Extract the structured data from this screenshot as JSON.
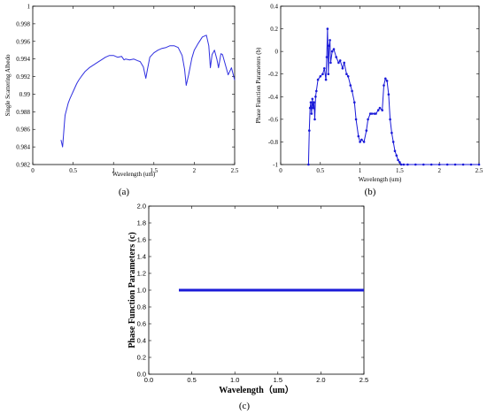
{
  "chart_data": [
    {
      "panel": "(a)",
      "type": "line",
      "xlabel": "Wavelength (um)",
      "ylabel": "Single Scattering Albedo",
      "xlim": [
        0,
        2.5
      ],
      "ylim": [
        0.982,
        1.0
      ],
      "xticks": [
        "0",
        "0.5",
        "1",
        "1.5",
        "2",
        "2.5"
      ],
      "yticks": [
        "0.982",
        "0.984",
        "0.986",
        "0.988",
        "0.99",
        "0.992",
        "0.994",
        "0.996",
        "0.998",
        "1"
      ],
      "grid": false,
      "color": "#2f2fe0",
      "series": [
        {
          "x": [
            0.35,
            0.37,
            0.38,
            0.39,
            0.4,
            0.42,
            0.44,
            0.46,
            0.48,
            0.5,
            0.52,
            0.54,
            0.55,
            0.57,
            0.6,
            0.65,
            0.7,
            0.75,
            0.8,
            0.85,
            0.9,
            0.95,
            1.0,
            1.05,
            1.1,
            1.13,
            1.15,
            1.2,
            1.25,
            1.3,
            1.33,
            1.37,
            1.4,
            1.42,
            1.45,
            1.5,
            1.55,
            1.6,
            1.65,
            1.7,
            1.75,
            1.8,
            1.85,
            1.88,
            1.9,
            1.93,
            1.97,
            2.0,
            2.05,
            2.1,
            2.15,
            2.18,
            2.2,
            2.22,
            2.25,
            2.28,
            2.3,
            2.33,
            2.35,
            2.38,
            2.42,
            2.46,
            2.5
          ],
          "y": [
            0.9848,
            0.984,
            0.9853,
            0.9865,
            0.9876,
            0.9883,
            0.989,
            0.9895,
            0.9899,
            0.9903,
            0.9907,
            0.9911,
            0.9913,
            0.9916,
            0.992,
            0.9926,
            0.993,
            0.9933,
            0.9936,
            0.9939,
            0.9942,
            0.9944,
            0.9944,
            0.9942,
            0.9943,
            0.9939,
            0.994,
            0.9939,
            0.994,
            0.9938,
            0.9937,
            0.9931,
            0.9918,
            0.9928,
            0.9942,
            0.9947,
            0.995,
            0.9952,
            0.9953,
            0.9955,
            0.9955,
            0.9953,
            0.9944,
            0.9928,
            0.991,
            0.9922,
            0.9941,
            0.995,
            0.9958,
            0.9965,
            0.9967,
            0.9955,
            0.993,
            0.9945,
            0.995,
            0.994,
            0.993,
            0.9946,
            0.9945,
            0.9935,
            0.9922,
            0.993,
            0.9916
          ]
        }
      ]
    },
    {
      "panel": "(b)",
      "type": "scatter",
      "xlabel": "Wavelength (um)",
      "ylabel": "Phase Function Parameters  (b)",
      "xlim": [
        0,
        2.5
      ],
      "ylim": [
        -1,
        0.4
      ],
      "xticks": [
        "0",
        "0.5",
        "1",
        "1.5",
        "2",
        "2.5"
      ],
      "yticks": [
        "-1",
        "-0.8",
        "-0.6",
        "-0.4",
        "-0.2",
        "0",
        "0.2",
        "0.4"
      ],
      "grid": false,
      "color": "#1a1ad8",
      "series": [
        {
          "x": [
            0.35,
            0.36,
            0.37,
            0.38,
            0.39,
            0.4,
            0.41,
            0.42,
            0.43,
            0.44,
            0.45,
            0.47,
            0.5,
            0.53,
            0.55,
            0.57,
            0.58,
            0.59,
            0.6,
            0.61,
            0.62,
            0.63,
            0.65,
            0.67,
            0.7,
            0.73,
            0.75,
            0.78,
            0.8,
            0.83,
            0.85,
            0.88,
            0.9,
            0.93,
            0.95,
            0.98,
            1.0,
            1.02,
            1.05,
            1.08,
            1.1,
            1.13,
            1.15,
            1.18,
            1.2,
            1.23,
            1.25,
            1.28,
            1.3,
            1.32,
            1.34,
            1.36,
            1.38,
            1.4,
            1.42,
            1.44,
            1.46,
            1.48,
            1.5,
            1.52,
            1.55,
            1.6,
            1.7,
            1.8,
            1.9,
            2.0,
            2.1,
            2.2,
            2.3,
            2.4,
            2.5
          ],
          "y": [
            -1.0,
            -0.7,
            -0.5,
            -0.45,
            -0.55,
            -0.42,
            -0.5,
            -0.45,
            -0.6,
            -0.4,
            -0.35,
            -0.25,
            -0.22,
            -0.2,
            -0.15,
            -0.25,
            -0.05,
            0.2,
            -0.2,
            0.05,
            0.1,
            -0.1,
            0.0,
            0.02,
            -0.05,
            -0.1,
            -0.08,
            -0.15,
            -0.1,
            -0.2,
            -0.22,
            -0.3,
            -0.35,
            -0.45,
            -0.6,
            -0.75,
            -0.8,
            -0.78,
            -0.8,
            -0.7,
            -0.6,
            -0.55,
            -0.55,
            -0.55,
            -0.55,
            -0.52,
            -0.5,
            -0.52,
            -0.3,
            -0.24,
            -0.26,
            -0.38,
            -0.6,
            -0.72,
            -0.8,
            -0.88,
            -0.92,
            -0.96,
            -0.98,
            -1.0,
            -1.0,
            -1.0,
            -1.0,
            -1.0,
            -1.0,
            -1.0,
            -1.0,
            -1.0,
            -1.0,
            -1.0,
            -1.0
          ]
        }
      ]
    },
    {
      "panel": "(c)",
      "type": "line",
      "xlabel": "Wavelength（um）",
      "ylabel": "Phase Function Parameters (c)",
      "xlim": [
        0,
        2.5
      ],
      "ylim": [
        0,
        2.0
      ],
      "xticks": [
        "0.0",
        "0.5",
        "1.0",
        "1.5",
        "2.0",
        "2.5"
      ],
      "yticks": [
        "0.0",
        "0.2",
        "0.4",
        "0.6",
        "0.8",
        "1.0",
        "1.2",
        "1.4",
        "1.6",
        "1.8",
        "2.0"
      ],
      "grid": false,
      "color": "#1a1ad8",
      "series": [
        {
          "x": [
            0.35,
            2.5
          ],
          "y": [
            1.0,
            1.0
          ]
        }
      ]
    }
  ]
}
